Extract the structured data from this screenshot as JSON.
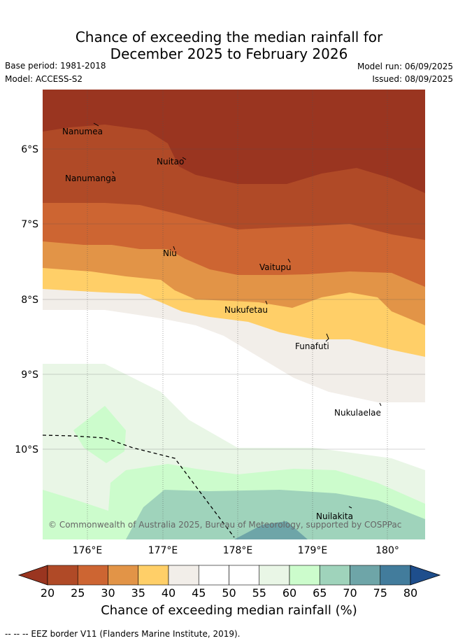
{
  "header": {
    "title_line1": "Chance of exceeding the median rainfall for",
    "title_line2": "December 2025 to February 2026",
    "base_period": "Base period: 1981-2018",
    "model": "Model: ACCESS-S2",
    "model_run": "Model run: 06/09/2025",
    "issued": "Issued: 08/09/2025"
  },
  "map": {
    "type": "filled-contour-map",
    "lon_range": [
      175.4,
      180.5
    ],
    "lat_range": [
      -11.3,
      -5.3
    ],
    "x_ticks": [
      "176°E",
      "177°E",
      "178°E",
      "179°E",
      "180°"
    ],
    "y_ticks": [
      "6°S",
      "7°S",
      "8°S",
      "9°S",
      "10°S"
    ],
    "places": [
      "Nanumea",
      "Nuitao",
      "Nanumanga",
      "Niu",
      "Vaitupu",
      "Nukufetau",
      "Funafuti",
      "Nukulaelae",
      "Nuilakita"
    ],
    "copyright": "© Commonwealth of Australia 2025, Bureau of Meteorology, supported by COSPPac"
  },
  "colorbar": {
    "title": "Chance of exceeding median rainfall (%)",
    "ticks": [
      "20",
      "25",
      "30",
      "35",
      "40",
      "45",
      "50",
      "55",
      "60",
      "65",
      "70",
      "75",
      "80"
    ],
    "colors": [
      "#9a3520",
      "#b04a27",
      "#cd6532",
      "#e29447",
      "#ffcf68",
      "#f2eee9",
      "#ffffff",
      "#ffffff",
      "#e9f6e6",
      "#ccfccc",
      "#9fd3bb",
      "#6ea5a8",
      "#427c9c",
      "#1e4e8c"
    ]
  },
  "footer": "--  --  -- EEZ border V11 (Flanders Marine Institute, 2019)."
}
